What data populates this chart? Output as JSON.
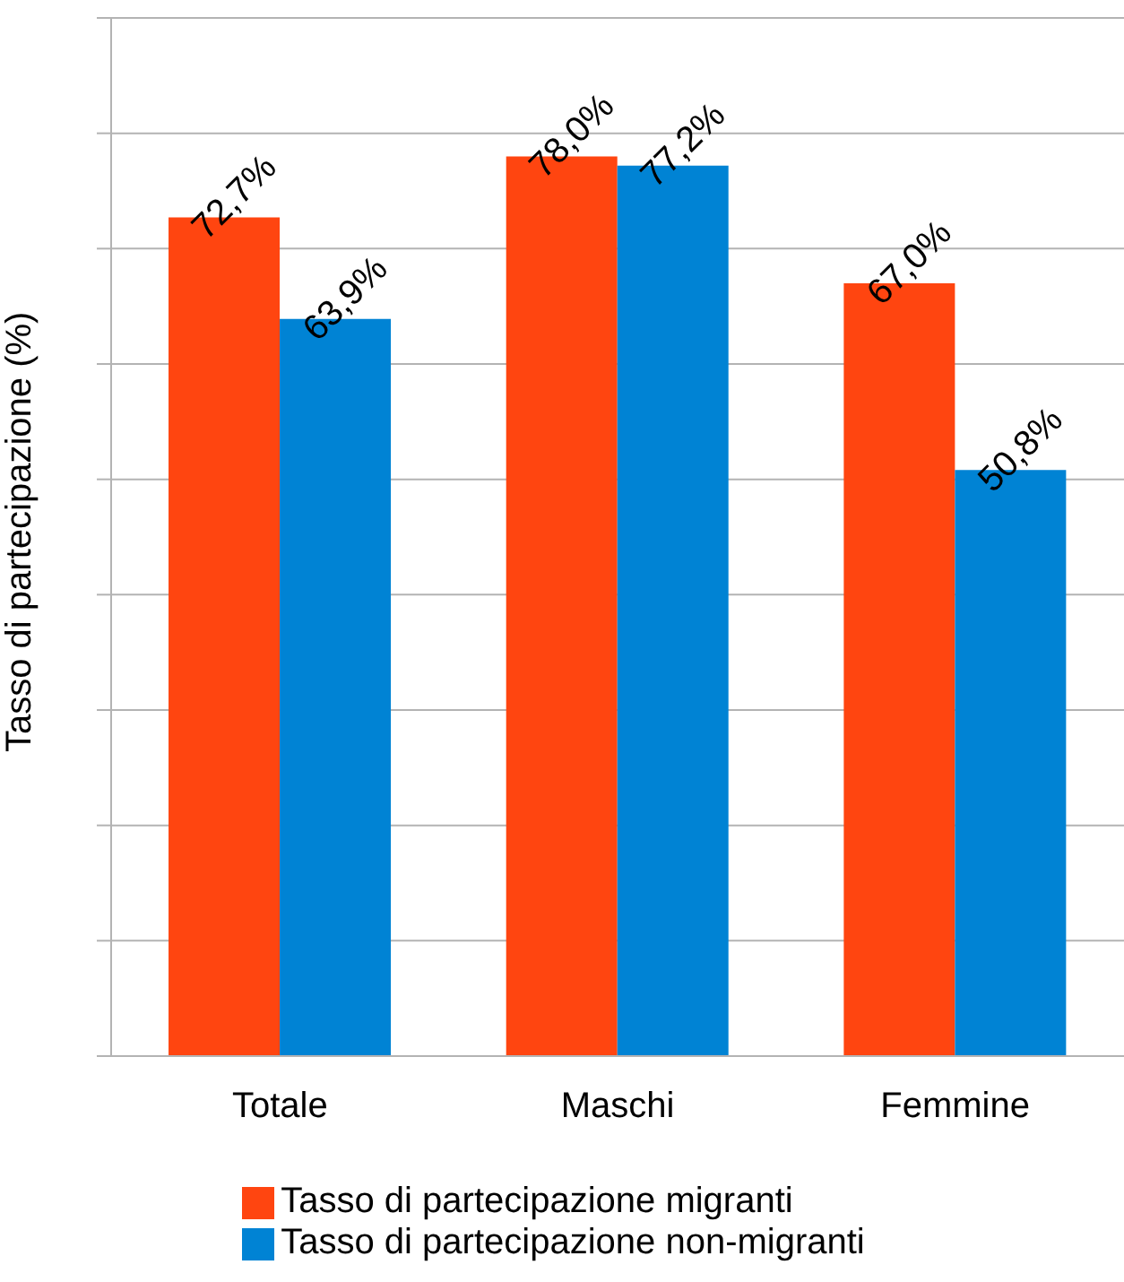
{
  "chart_data": {
    "type": "bar",
    "ylabel": "Tasso di partecipazione (%)",
    "categories": [
      "Totale",
      "Maschi",
      "Femmine"
    ],
    "series": [
      {
        "name": "Tasso di partecipazione migranti",
        "color": "#ff4510",
        "values": [
          72.7,
          78.0,
          67.0
        ],
        "value_labels": [
          "72,7%",
          "78,0%",
          "67,0%"
        ]
      },
      {
        "name": "Tasso di partecipazione non-migranti",
        "color": "#0083d4",
        "values": [
          63.9,
          77.2,
          50.8
        ],
        "value_labels": [
          "63,9%",
          "77,2%",
          "50,8%"
        ]
      }
    ],
    "ylim": [
      0,
      90
    ],
    "yticks": [
      {
        "value": 0,
        "label": null
      },
      {
        "value": 10,
        "label": null
      },
      {
        "value": 20,
        "label": null
      },
      {
        "value": 30,
        "label": null
      },
      {
        "value": 40,
        "label": null
      },
      {
        "value": 50,
        "label": null
      },
      {
        "value": 60,
        "label": null
      },
      {
        "value": 70,
        "label": null
      },
      {
        "value": 80,
        "label": null
      },
      {
        "value": 90,
        "label": null
      }
    ],
    "tick_labels": "x",
    "grid": "y",
    "legend": "bottom"
  }
}
